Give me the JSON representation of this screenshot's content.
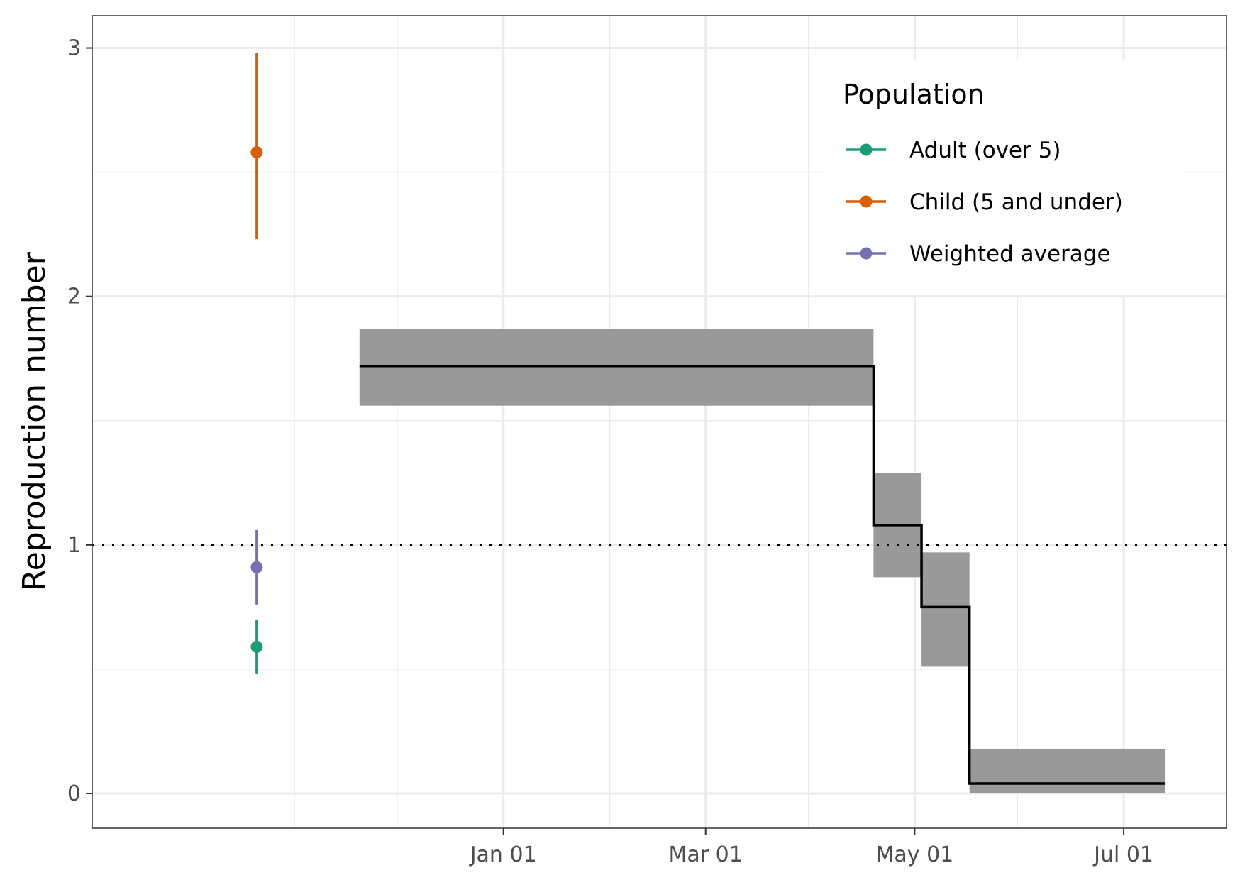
{
  "chart_data": {
    "type": "line",
    "title": "",
    "xlabel": "",
    "ylabel": "Reproduction number",
    "ylim": [
      -0.14,
      3.13
    ],
    "yticks": [
      0,
      1,
      2,
      3
    ],
    "ytick_labels": [
      "0",
      "1",
      "2",
      "3"
    ],
    "xlim": [
      "2021-09-03",
      "2022-07-31"
    ],
    "xticks": [
      "2022-01-01",
      "2022-03-01",
      "2022-05-01",
      "2022-07-01"
    ],
    "xtick_labels": [
      "Jan 01",
      "Mar 01",
      "May 01",
      "Jul 01"
    ],
    "x_minor_ticks": [
      "2021-11-01",
      "2021-12-01",
      "2022-02-01",
      "2022-03-31",
      "2022-05-31",
      "2022-07-31"
    ],
    "grid": true,
    "reference_line": {
      "y": 1,
      "style": "dotted",
      "color": "#000000"
    },
    "step_series": {
      "line_color": "#000000",
      "band_color": "#999999",
      "segments": [
        {
          "x_start": "2021-11-20",
          "x_end": "2022-04-19",
          "median": 1.72,
          "lower": 1.56,
          "upper": 1.87
        },
        {
          "x_start": "2022-04-19",
          "x_end": "2022-05-03",
          "median": 1.08,
          "lower": 0.87,
          "upper": 1.29
        },
        {
          "x_start": "2022-05-03",
          "x_end": "2022-05-17",
          "median": 0.75,
          "lower": 0.51,
          "upper": 0.97
        },
        {
          "x_start": "2022-05-17",
          "x_end": "2022-07-13",
          "median": 0.04,
          "lower": 0.0,
          "upper": 0.18
        }
      ]
    },
    "point_series": [
      {
        "name": "Adult (over 5)",
        "color": "#1B9E77",
        "x": "2021-10-21",
        "y": 0.59,
        "lower": 0.48,
        "upper": 0.7
      },
      {
        "name": "Child (5 and under)",
        "color": "#D95F02",
        "x": "2021-10-21",
        "y": 2.58,
        "lower": 2.23,
        "upper": 2.98
      },
      {
        "name": "Weighted average",
        "color": "#7570B3",
        "x": "2021-10-21",
        "y": 0.91,
        "lower": 0.76,
        "upper": 1.06
      }
    ],
    "legend": {
      "title": "Population",
      "placement": "top-right",
      "items": [
        "Adult (over 5)",
        "Child (5 and under)",
        "Weighted average"
      ]
    }
  }
}
